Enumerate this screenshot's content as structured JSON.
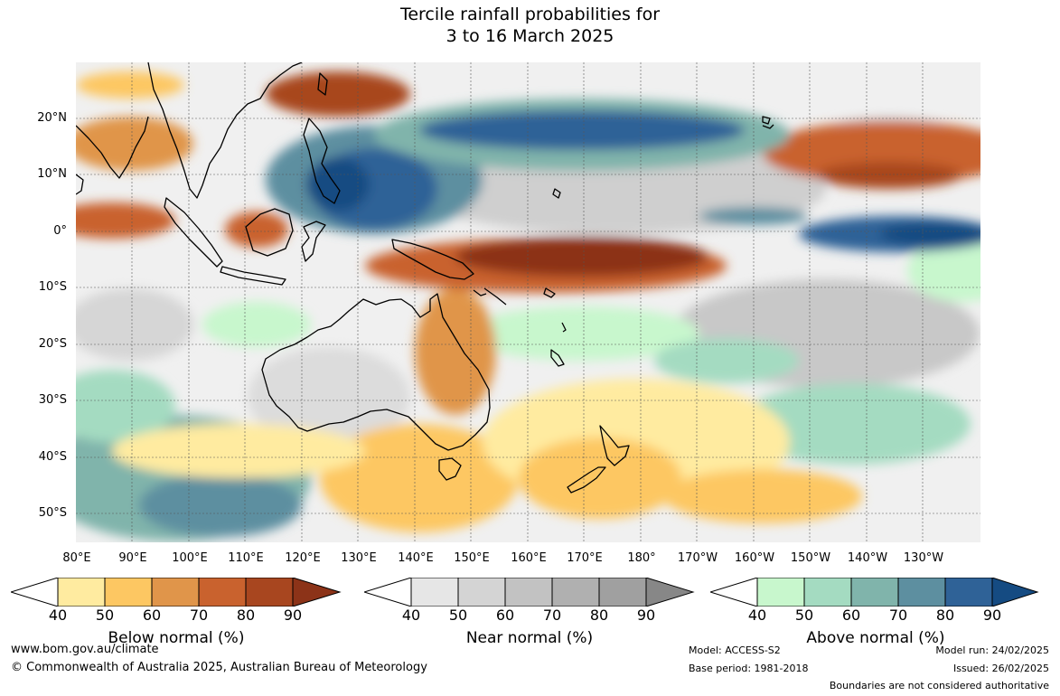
{
  "title": {
    "line1": "Tercile rainfall probabilities for",
    "line2": "3 to 16 March 2025"
  },
  "map": {
    "lat_labels": [
      "20°N",
      "10°N",
      "0°",
      "10°S",
      "20°S",
      "30°S",
      "40°S",
      "50°S"
    ],
    "lon_labels": [
      "80°E",
      "90°E",
      "100°E",
      "110°E",
      "120°E",
      "130°E",
      "140°E",
      "150°E",
      "160°E",
      "170°E",
      "180°",
      "170°W",
      "160°W",
      "150°W",
      "140°W",
      "130°W"
    ]
  },
  "colorbars": [
    {
      "title": "Below normal (%)",
      "ticks": [
        "40",
        "50",
        "60",
        "70",
        "80",
        "90"
      ],
      "colors": [
        "#ffeba0",
        "#fdc762",
        "#e0954a",
        "#c9622e",
        "#a8461f",
        "#8c3318"
      ]
    },
    {
      "title": "Near normal (%)",
      "ticks": [
        "40",
        "50",
        "60",
        "70",
        "80",
        "90"
      ],
      "colors": [
        "#e6e6e6",
        "#d4d4d4",
        "#c2c2c2",
        "#b0b0b0",
        "#a0a0a0",
        "#878787"
      ]
    },
    {
      "title": "Above normal (%)",
      "ticks": [
        "40",
        "50",
        "60",
        "70",
        "80",
        "90"
      ],
      "colors": [
        "#c8f7cd",
        "#a4dbc1",
        "#80b4ab",
        "#5d8fa0",
        "#2f6297",
        "#154b82"
      ]
    }
  ],
  "footer": {
    "website": "www.bom.gov.au/climate",
    "copyright": "© Commonwealth of Australia 2025, Australian Bureau of Meteorology",
    "model": "Model: ACCESS-S2",
    "base_period": "Base period: 1981-2018",
    "model_run": "Model run: 24/02/2025",
    "issued": "Issued: 26/02/2025",
    "disclaimer": "Boundaries are not considered authoritative"
  }
}
